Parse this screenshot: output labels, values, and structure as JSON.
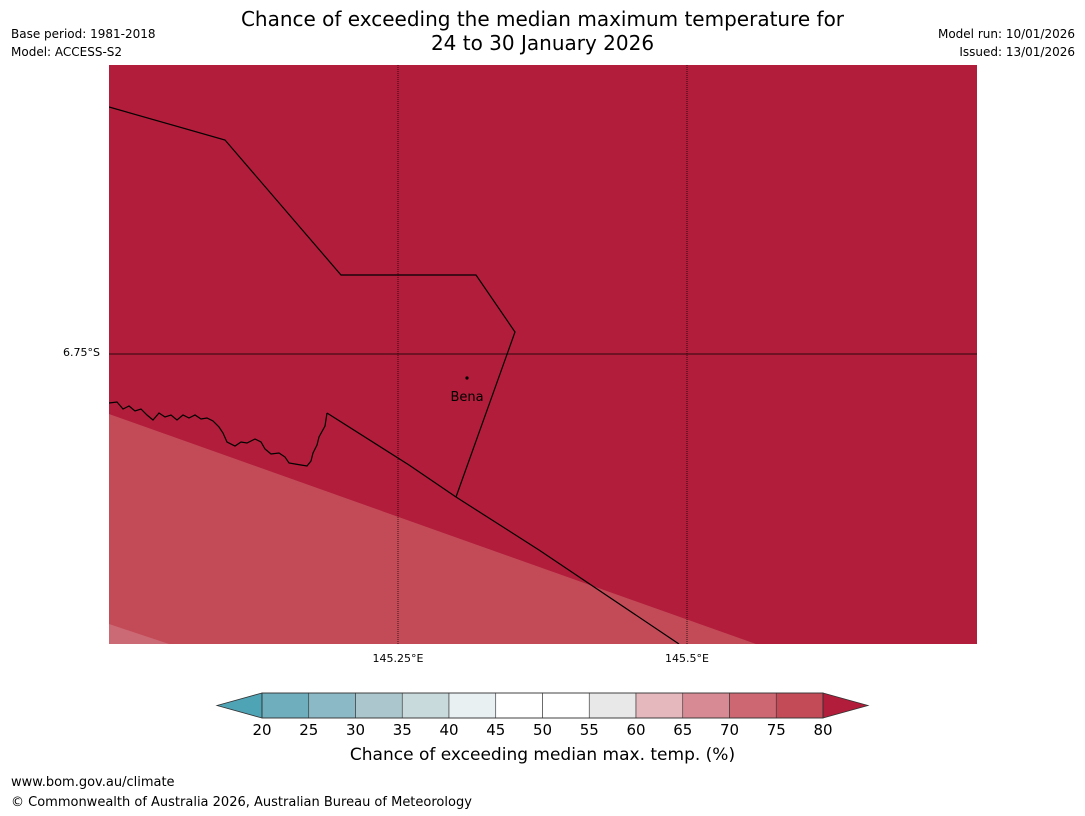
{
  "header": {
    "title_line1": "Chance of exceeding the median maximum temperature for",
    "title_line2": "24 to 30 January 2026",
    "base_period": "Base period: 1981-2018",
    "model": "Model: ACCESS-S2",
    "model_run": "Model run: 10/01/2026",
    "issued": "Issued: 13/01/2026"
  },
  "map": {
    "lat_label": "6.75°S",
    "lon_labels": [
      "145.25°E",
      "145.5°E"
    ],
    "place_label": "Bena",
    "colors": {
      "band_80_plus": "#b11d3a",
      "band_75_80": "#c34b58",
      "band_70_75": "#cb6a75",
      "border": "#000000"
    }
  },
  "legend": {
    "ticks": [
      "20",
      "25",
      "30",
      "35",
      "40",
      "45",
      "50",
      "55",
      "60",
      "65",
      "70",
      "75",
      "80"
    ],
    "label": "Chance of exceeding median max. temp. (%)",
    "colors": [
      "#4ea3b5",
      "#6eaebd",
      "#8cb9c6",
      "#abc6cc",
      "#c9dadd",
      "#e9f0f2",
      "#ffffff",
      "#ffffff",
      "#e8e8e8",
      "#e4b8bd",
      "#d88a94",
      "#cd6873",
      "#c34b58",
      "#b11d3a"
    ]
  },
  "footer": {
    "url": "www.bom.gov.au/climate",
    "copyright": "© Commonwealth of Australia 2026, Australian Bureau of Meteorology"
  }
}
